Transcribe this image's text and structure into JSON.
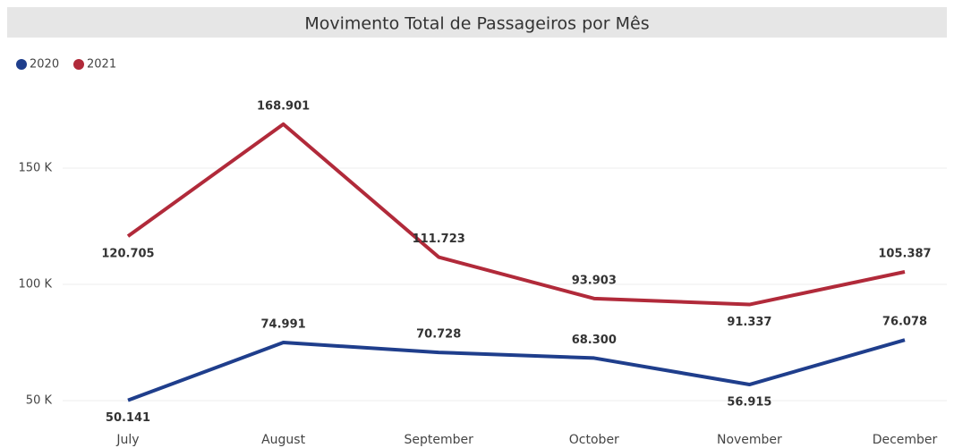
{
  "chart_data": {
    "type": "line",
    "title": "Movimento Total de Passageiros por Mês",
    "categories": [
      "July",
      "August",
      "September",
      "October",
      "November",
      "December"
    ],
    "series": [
      {
        "name": "2020",
        "color": "#1f3e8c",
        "values": [
          50141,
          74991,
          70728,
          68300,
          56915,
          76078
        ],
        "value_labels": [
          "50.141",
          "74.991",
          "70.728",
          "68.300",
          "56.915",
          "76.078"
        ]
      },
      {
        "name": "2021",
        "color": "#b12a3a",
        "values": [
          120705,
          168901,
          111723,
          93903,
          91337,
          105387
        ],
        "value_labels": [
          "120.705",
          "168.901",
          "111.723",
          "93.903",
          "91.337",
          "105.387"
        ]
      }
    ],
    "ylim": [
      40000,
      180000
    ],
    "yticks": [
      {
        "value": 50000,
        "label": "50 K"
      },
      {
        "value": 100000,
        "label": "100 K"
      },
      {
        "value": 150000,
        "label": "150 K"
      }
    ],
    "grid": true,
    "legend": "top-left"
  }
}
